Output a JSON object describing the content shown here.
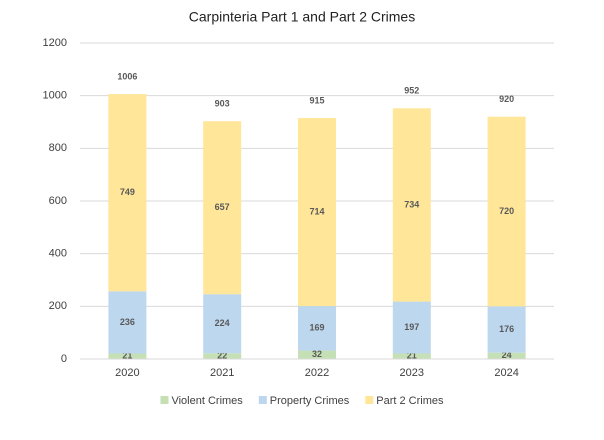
{
  "chart_data": {
    "type": "stacked_bar",
    "title": "Carpinteria Part 1 and Part 2 Crimes",
    "categories": [
      "2020",
      "2021",
      "2022",
      "2023",
      "2024"
    ],
    "series": [
      {
        "name": "Violent Crimes",
        "color": "#c5e0b4",
        "values": [
          21,
          22,
          32,
          21,
          24
        ]
      },
      {
        "name": "Property Crimes",
        "color": "#bdd7ee",
        "values": [
          236,
          224,
          169,
          197,
          176
        ]
      },
      {
        "name": "Part 2 Crimes",
        "color": "#ffe699",
        "values": [
          749,
          657,
          714,
          734,
          720
        ]
      }
    ],
    "totals": [
      1006,
      903,
      915,
      952,
      920
    ],
    "ylim": [
      0,
      1200
    ],
    "yticks": [
      0,
      200,
      400,
      600,
      800,
      1000,
      1200
    ],
    "grid": true,
    "legend": "bottom"
  }
}
